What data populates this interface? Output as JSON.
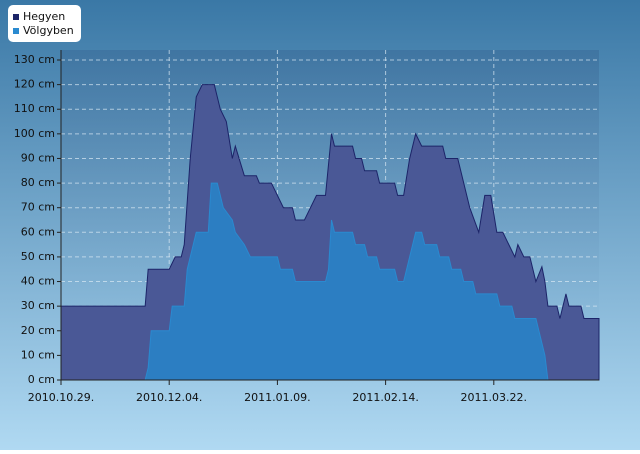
{
  "chart_data": {
    "type": "area",
    "legend": "top-left",
    "grid": true,
    "xlim": [
      "2010.10.29.",
      "2011.04.26."
    ],
    "xticks": [
      "2010.10.29.",
      "2010.12.04.",
      "2011.01.09.",
      "2011.02.14.",
      "2011.03.22."
    ],
    "ylim": [
      0,
      130
    ],
    "yticks": [
      {
        "value": 0,
        "label": "0 cm"
      },
      {
        "value": 10,
        "label": "10 cm"
      },
      {
        "value": 20,
        "label": "20 cm"
      },
      {
        "value": 30,
        "label": "30 cm"
      },
      {
        "value": 40,
        "label": "40 cm"
      },
      {
        "value": 50,
        "label": "50 cm"
      },
      {
        "value": 60,
        "label": "60 cm"
      },
      {
        "value": 70,
        "label": "70 cm"
      },
      {
        "value": 80,
        "label": "80 cm"
      },
      {
        "value": 90,
        "label": "90 cm"
      },
      {
        "value": 100,
        "label": "100 cm"
      },
      {
        "value": 110,
        "label": "110 cm"
      },
      {
        "value": 120,
        "label": "120 cm"
      },
      {
        "value": 130,
        "label": "130 cm"
      }
    ],
    "series": [
      {
        "name": "Hegyen",
        "color": "#1c2468",
        "fill": "#4a5896",
        "x": [
          "2010.10.29.",
          "2010.11.26.",
          "2010.11.27.",
          "2010.12.04.",
          "2010.12.06.",
          "2010.12.08.",
          "2010.12.09.",
          "2010.12.11.",
          "2010.12.13.",
          "2010.12.15.",
          "2010.12.19.",
          "2010.12.21.",
          "2010.12.23.",
          "2010.12.25.",
          "2010.12.26.",
          "2010.12.29.",
          "2011.01.02.",
          "2011.01.03.",
          "2011.01.07.",
          "2011.01.09.",
          "2011.01.11.",
          "2011.01.14.",
          "2011.01.15.",
          "2011.01.18.",
          "2011.01.20.",
          "2011.01.22.",
          "2011.01.25.",
          "2011.01.27.",
          "2011.01.28.",
          "2011.02.03.",
          "2011.02.04.",
          "2011.02.06.",
          "2011.02.07.",
          "2011.02.11.",
          "2011.02.12.",
          "2011.02.17.",
          "2011.02.18.",
          "2011.02.20.",
          "2011.02.22.",
          "2011.02.24.",
          "2011.02.26.",
          "2011.03.05.",
          "2011.03.06.",
          "2011.03.10.",
          "2011.03.12.",
          "2011.03.14.",
          "2011.03.17.",
          "2011.03.19.",
          "2011.03.21.",
          "2011.03.23.",
          "2011.03.25.",
          "2011.03.27.",
          "2011.03.29.",
          "2011.03.30.",
          "2011.04.01.",
          "2011.04.03.",
          "2011.04.05.",
          "2011.04.07.",
          "2011.04.08.",
          "2011.04.09.",
          "2011.04.12.",
          "2011.04.13.",
          "2011.04.15.",
          "2011.04.16.",
          "2011.04.20.",
          "2011.04.21.",
          "2011.04.26."
        ],
        "values": [
          30,
          30,
          45,
          45,
          50,
          50,
          55,
          90,
          115,
          120,
          120,
          110,
          105,
          90,
          95,
          83,
          83,
          80,
          80,
          75,
          70,
          70,
          65,
          65,
          70,
          75,
          75,
          100,
          95,
          95,
          90,
          90,
          85,
          85,
          80,
          80,
          75,
          75,
          90,
          100,
          95,
          95,
          90,
          90,
          80,
          70,
          60,
          75,
          75,
          60,
          60,
          55,
          50,
          55,
          50,
          50,
          40,
          46,
          40,
          30,
          30,
          25,
          35,
          30,
          30,
          25,
          25
        ]
      },
      {
        "name": "Völgyben",
        "color": "#2a8ad0",
        "fill": "#2c7ec2",
        "x": [
          "2010.10.29.",
          "2010.11.26.",
          "2010.11.27.",
          "2010.11.28.",
          "2010.12.04.",
          "2010.12.05.",
          "2010.12.09.",
          "2010.12.10.",
          "2010.12.13.",
          "2010.12.17.",
          "2010.12.18.",
          "2010.12.20.",
          "2010.12.22.",
          "2010.12.25.",
          "2010.12.26.",
          "2010.12.29.",
          "2010.12.31.",
          "2011.01.09.",
          "2011.01.10.",
          "2011.01.14.",
          "2011.01.15.",
          "2011.01.25.",
          "2011.01.26.",
          "2011.01.27.",
          "2011.01.28.",
          "2011.02.03.",
          "2011.02.04.",
          "2011.02.07.",
          "2011.02.08.",
          "2011.02.11.",
          "2011.02.12.",
          "2011.02.17.",
          "2011.02.18.",
          "2011.02.20.",
          "2011.02.22.",
          "2011.02.24.",
          "2011.02.26.",
          "2011.02.27.",
          "2011.03.03.",
          "2011.03.04.",
          "2011.03.07.",
          "2011.03.08.",
          "2011.03.11.",
          "2011.03.12.",
          "2011.03.15.",
          "2011.03.16.",
          "2011.03.23.",
          "2011.03.24.",
          "2011.03.28.",
          "2011.03.29.",
          "2011.04.05.",
          "2011.04.07.",
          "2011.04.08.",
          "2011.04.09.",
          "2011.04.26."
        ],
        "values": [
          0,
          0,
          5,
          20,
          20,
          30,
          30,
          45,
          60,
          60,
          80,
          80,
          70,
          65,
          60,
          55,
          50,
          50,
          45,
          45,
          40,
          40,
          45,
          65,
          60,
          60,
          55,
          55,
          50,
          50,
          45,
          45,
          40,
          40,
          50,
          60,
          60,
          55,
          55,
          50,
          50,
          45,
          45,
          40,
          40,
          35,
          35,
          30,
          30,
          25,
          25,
          15,
          10,
          0,
          0
        ]
      }
    ]
  }
}
